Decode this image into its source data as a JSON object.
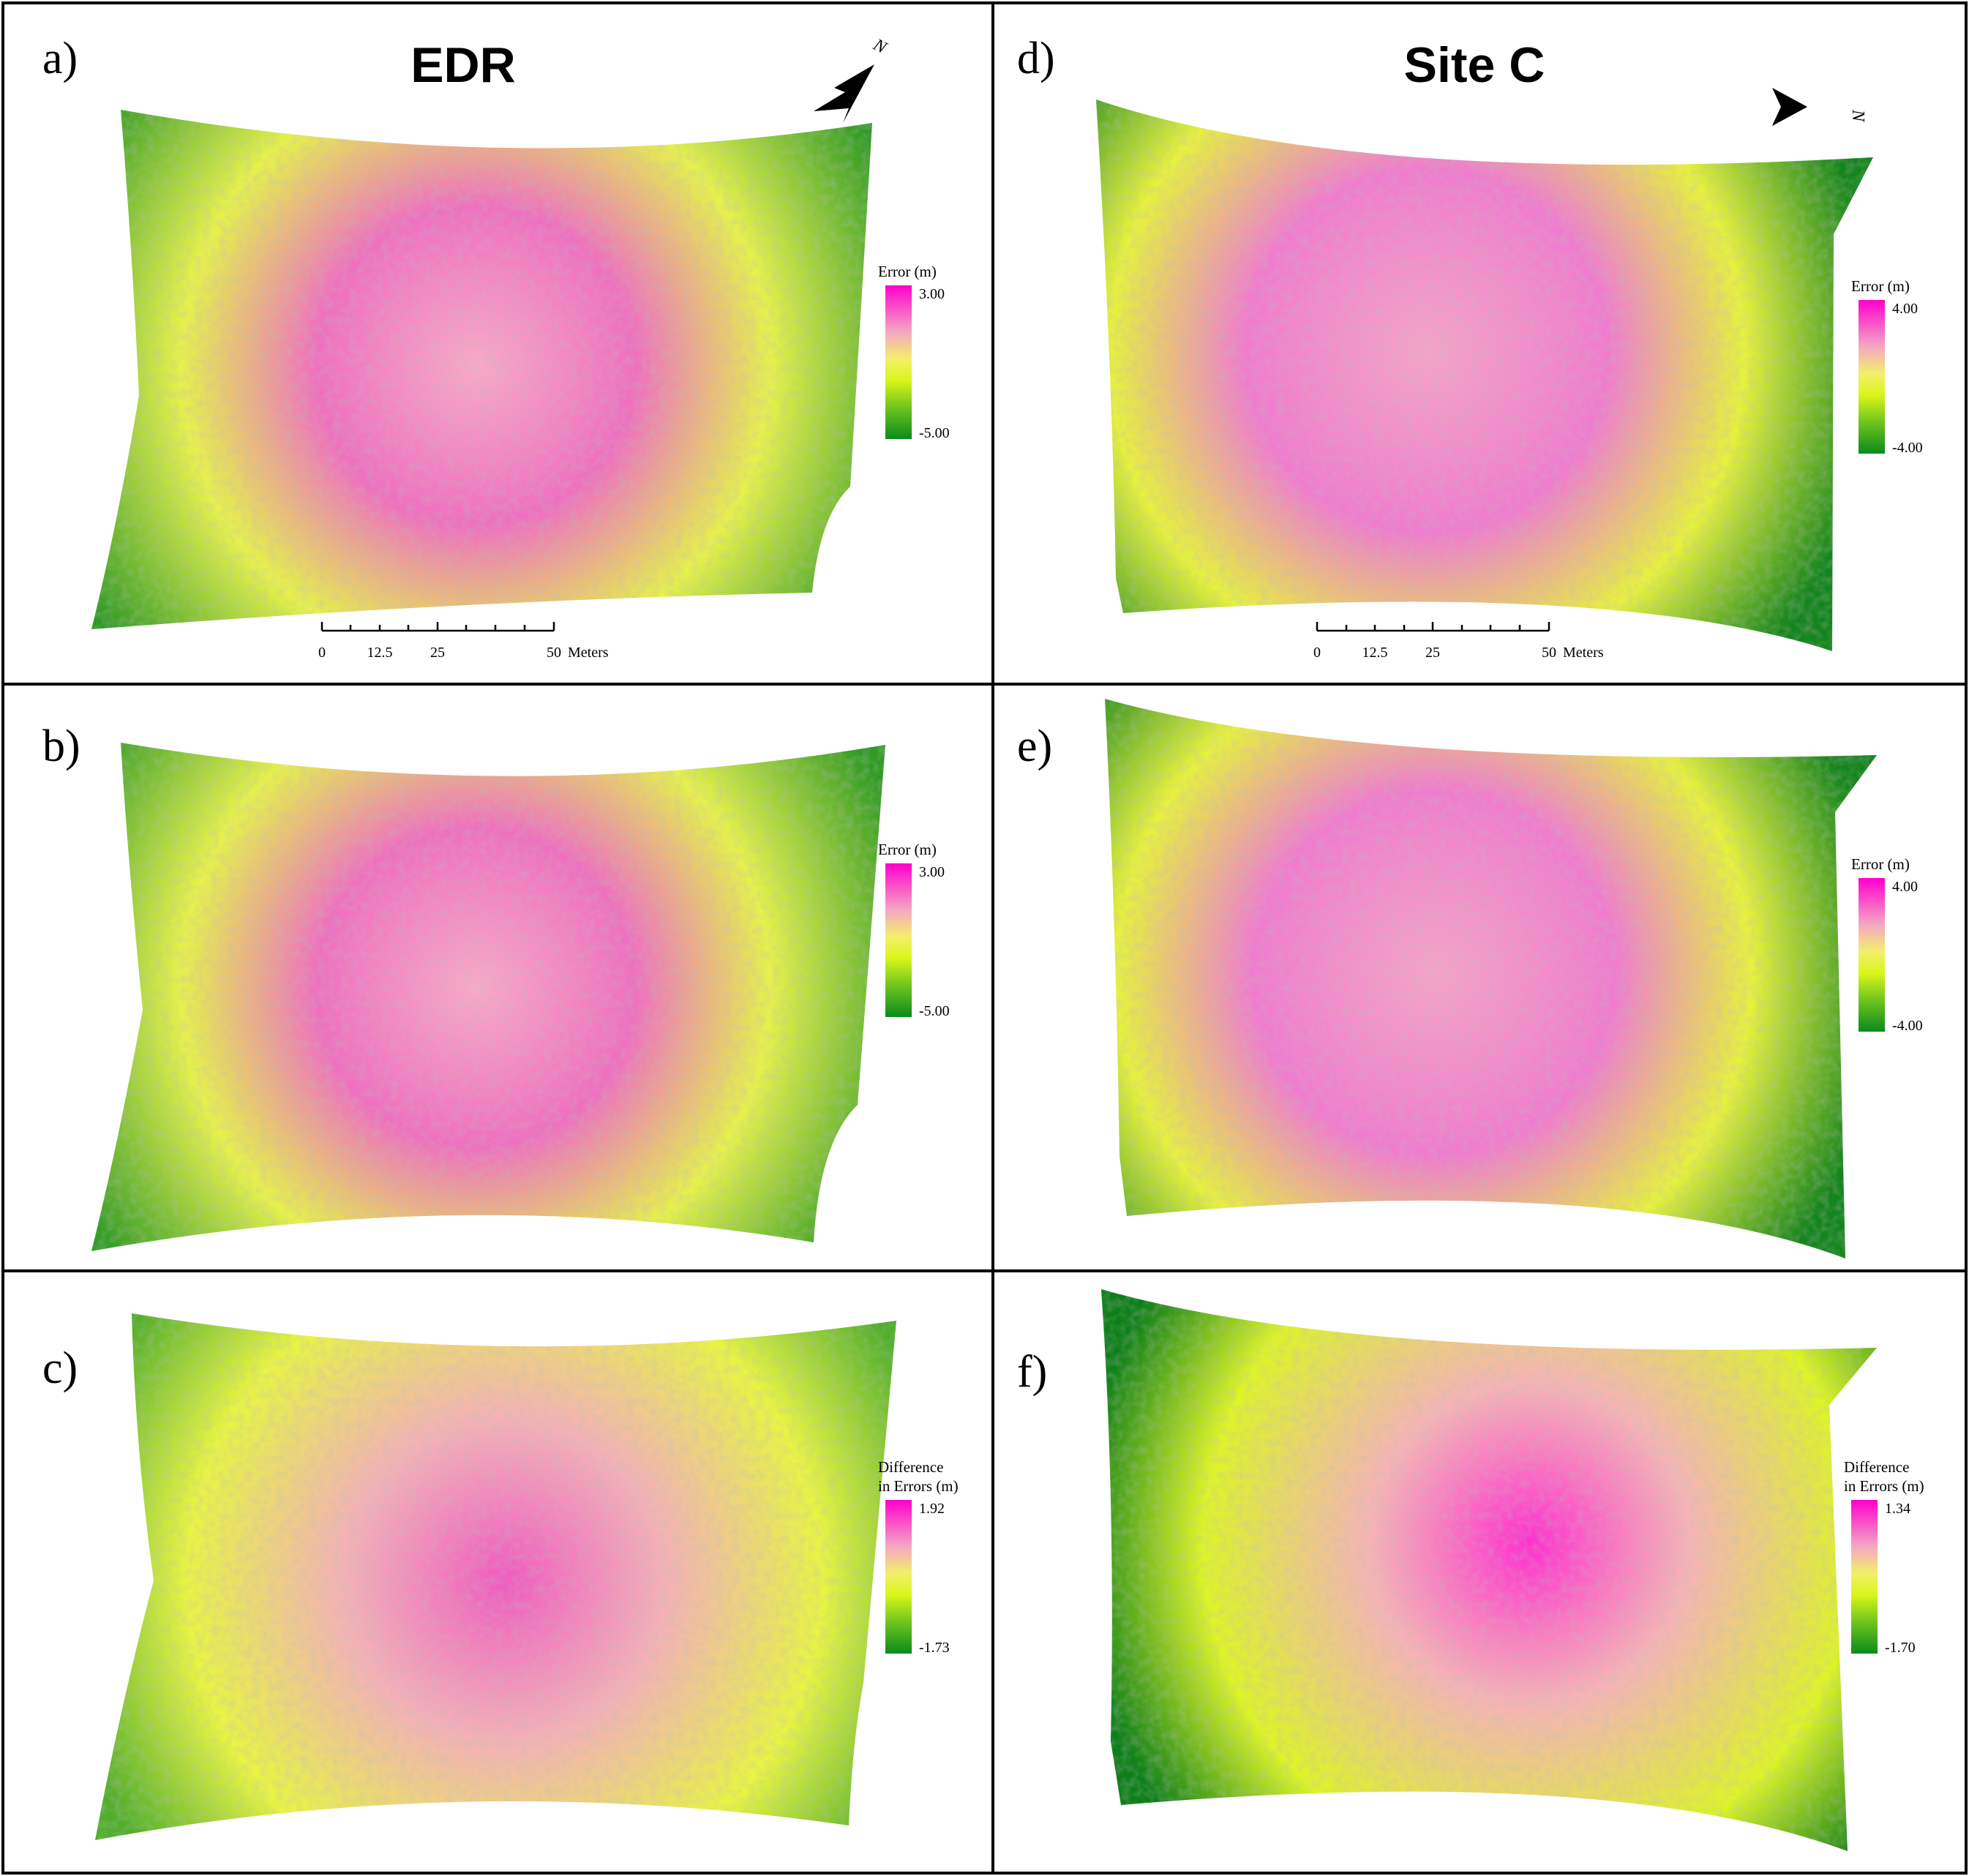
{
  "colors": {
    "pink": "#ff00cc",
    "light_pink": "#f5a3c2",
    "yellow": "#e8ff3c",
    "green": "#0d8a1c",
    "dark_green": "#006b10"
  },
  "columns": [
    {
      "title": "EDR",
      "north_arrow_label": "N",
      "north_arrow_icon": "north-arrow-icon"
    },
    {
      "title": "Site C",
      "north_arrow_label": "N",
      "north_arrow_icon": "north-arrow-icon"
    }
  ],
  "panels": [
    {
      "label": "a)",
      "legend_title": [
        "Error (m)"
      ],
      "max": "3.00",
      "min": "-5.00",
      "pattern": "edr-error"
    },
    {
      "label": "b)",
      "legend_title": [
        "Error (m)"
      ],
      "max": "3.00",
      "min": "-5.00",
      "pattern": "edr-error"
    },
    {
      "label": "c)",
      "legend_title": [
        "Difference",
        "in Errors (m)"
      ],
      "max": "1.92",
      "min": "-1.73",
      "pattern": "edr-diff"
    },
    {
      "label": "d)",
      "legend_title": [
        "Error (m)"
      ],
      "max": "4.00",
      "min": "-4.00",
      "pattern": "sitec-error"
    },
    {
      "label": "e)",
      "legend_title": [
        "Error (m)"
      ],
      "max": "4.00",
      "min": "-4.00",
      "pattern": "sitec-error"
    },
    {
      "label": "f)",
      "legend_title": [
        "Difference",
        "in Errors (m)"
      ],
      "max": "1.34",
      "min": "-1.70",
      "pattern": "sitec-diff"
    }
  ],
  "scale_bar": {
    "ticks": [
      "0",
      "12.5",
      "25",
      "50"
    ],
    "unit": "Meters"
  }
}
